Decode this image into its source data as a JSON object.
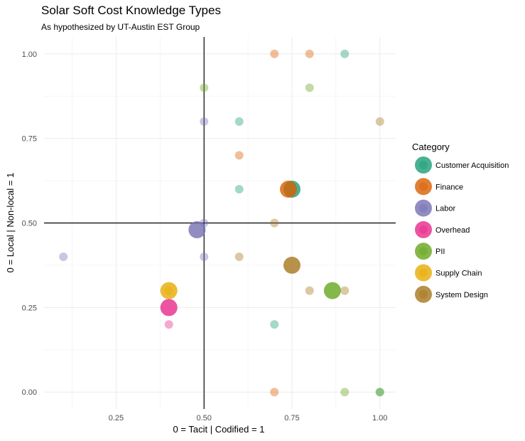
{
  "chart_data": {
    "type": "scatter",
    "title": "Solar Soft Cost Knowledge Types",
    "subtitle": "As hypothesized by UT-Austin EST Group",
    "xlabel": "0 = Tacit | Codified = 1",
    "ylabel": "0 = Local | Non-local = 1",
    "xlim": [
      0.045,
      1.045
    ],
    "ylim": [
      -0.05,
      1.05
    ],
    "x_ticks": [
      0.25,
      0.5,
      0.75,
      1.0
    ],
    "x_tick_labels": [
      "0.25",
      "0.50",
      "0.75",
      "1.00"
    ],
    "y_ticks": [
      0.0,
      0.25,
      0.5,
      0.75,
      1.0
    ],
    "y_tick_labels": [
      "0.00",
      "0.25",
      "0.50",
      "0.75",
      "1.00"
    ],
    "reference_lines": {
      "x": 0.5,
      "y": 0.5
    },
    "grid": true,
    "legend": {
      "title": "Category",
      "position": "right"
    },
    "series": [
      {
        "name": "Customer Acquisition",
        "color": "#1b9e77",
        "points": [
          {
            "x": 0.9,
            "y": 1.0,
            "mean": false
          },
          {
            "x": 0.6,
            "y": 0.8,
            "mean": false
          },
          {
            "x": 0.6,
            "y": 0.6,
            "mean": false
          },
          {
            "x": 0.7,
            "y": 0.2,
            "mean": false
          },
          {
            "x": 1.0,
            "y": 0.0,
            "mean": false
          },
          {
            "x": 0.75,
            "y": 0.6,
            "mean": true
          }
        ]
      },
      {
        "name": "Finance",
        "color": "#d95f02",
        "points": [
          {
            "x": 0.7,
            "y": 1.0,
            "mean": false
          },
          {
            "x": 0.8,
            "y": 1.0,
            "mean": false
          },
          {
            "x": 0.6,
            "y": 0.7,
            "mean": false
          },
          {
            "x": 0.7,
            "y": 0.0,
            "mean": false
          },
          {
            "x": 0.74,
            "y": 0.6,
            "mean": true
          }
        ]
      },
      {
        "name": "Labor",
        "color": "#7570b3",
        "points": [
          {
            "x": 0.5,
            "y": 0.8,
            "mean": false
          },
          {
            "x": 0.5,
            "y": 0.5,
            "mean": false
          },
          {
            "x": 0.5,
            "y": 0.4,
            "mean": false
          },
          {
            "x": 0.1,
            "y": 0.4,
            "mean": false
          },
          {
            "x": 0.48,
            "y": 0.48,
            "mean": true
          }
        ]
      },
      {
        "name": "Overhead",
        "color": "#e7298a",
        "points": [
          {
            "x": 0.4,
            "y": 0.2,
            "mean": false
          },
          {
            "x": 0.4,
            "y": 0.25,
            "mean": true
          }
        ]
      },
      {
        "name": "PII",
        "color": "#66a61e",
        "points": [
          {
            "x": 0.5,
            "y": 0.9,
            "mean": false
          },
          {
            "x": 0.8,
            "y": 0.9,
            "mean": false
          },
          {
            "x": 0.9,
            "y": 0.0,
            "mean": false
          },
          {
            "x": 1.0,
            "y": 0.0,
            "mean": false
          },
          {
            "x": 0.865,
            "y": 0.3,
            "mean": true
          }
        ]
      },
      {
        "name": "Supply Chain",
        "color": "#e6ab02",
        "points": [
          {
            "x": 0.4,
            "y": 0.3,
            "mean": false
          },
          {
            "x": 0.4,
            "y": 0.3,
            "mean": true
          }
        ]
      },
      {
        "name": "System Design",
        "color": "#a6761d",
        "points": [
          {
            "x": 1.0,
            "y": 0.8,
            "mean": false
          },
          {
            "x": 0.7,
            "y": 0.5,
            "mean": false
          },
          {
            "x": 0.6,
            "y": 0.4,
            "mean": false
          },
          {
            "x": 0.8,
            "y": 0.3,
            "mean": false
          },
          {
            "x": 0.9,
            "y": 0.3,
            "mean": false
          },
          {
            "x": 0.75,
            "y": 0.375,
            "mean": true
          }
        ]
      }
    ]
  }
}
